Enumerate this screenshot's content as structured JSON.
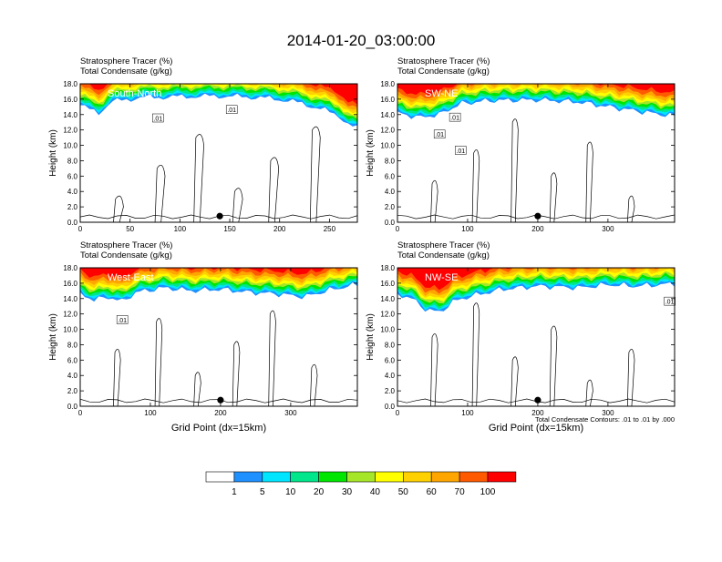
{
  "title": "2014-01-20_03:00:00",
  "colors": [
    "#ffffff",
    "#1e90ff",
    "#00e5ff",
    "#00e68a",
    "#00e600",
    "#a6e628",
    "#ffff00",
    "#ffd100",
    "#ffa500",
    "#ff5a00",
    "#ff0000"
  ],
  "chart_data": [
    {
      "type": "heatmap",
      "panel": "South-North",
      "title_lines": [
        "Stratosphere Tracer   (%)",
        "Total Condensate   (g/kg)"
      ],
      "xlabel": "",
      "ylabel": "Height (km)",
      "xlim": [
        0,
        278
      ],
      "ylim": [
        0,
        18
      ],
      "xticks": [
        0,
        50,
        100,
        150,
        200,
        250
      ],
      "yticks": [
        "0.0",
        "2.0",
        "4.0",
        "6.0",
        "8.0",
        "10.0",
        "12.0",
        "14.0",
        "16.0",
        "18.0"
      ],
      "marker_x": 140,
      "tracer_base_km": [
        [
          0,
          15.2
        ],
        [
          10,
          14.6
        ],
        [
          20,
          14.2
        ],
        [
          30,
          15.6
        ],
        [
          40,
          15.8
        ],
        [
          60,
          16.2
        ],
        [
          100,
          16.3
        ],
        [
          140,
          16.4
        ],
        [
          180,
          16.2
        ],
        [
          210,
          15.8
        ],
        [
          240,
          14.8
        ],
        [
          260,
          13.8
        ],
        [
          270,
          12.6
        ],
        [
          278,
          12.2
        ]
      ],
      "contour_labels": [
        [
          78,
          13.5,
          ".01"
        ],
        [
          152,
          14.6,
          ".01"
        ]
      ]
    },
    {
      "type": "heatmap",
      "panel": "SW-NE",
      "title_lines": [
        "Stratosphere Tracer   (%)",
        "Total Condensate   (g/kg)"
      ],
      "xlabel": "",
      "ylabel": "Height (km)",
      "xlim": [
        0,
        395
      ],
      "ylim": [
        0,
        18
      ],
      "xticks": [
        0,
        100,
        200,
        300
      ],
      "yticks": [
        "0.0",
        "2.0",
        "4.0",
        "6.0",
        "8.0",
        "10.0",
        "12.0",
        "14.0",
        "16.0",
        "18.0"
      ],
      "marker_x": 200,
      "tracer_base_km": [
        [
          0,
          14.2
        ],
        [
          30,
          13.6
        ],
        [
          60,
          14.0
        ],
        [
          90,
          15.4
        ],
        [
          130,
          15.8
        ],
        [
          200,
          15.9
        ],
        [
          260,
          15.6
        ],
        [
          300,
          15.0
        ],
        [
          330,
          14.6
        ],
        [
          360,
          14.2
        ],
        [
          395,
          13.8
        ]
      ],
      "contour_labels": [
        [
          82,
          13.6,
          ".01"
        ],
        [
          60,
          11.4,
          ".01"
        ],
        [
          90,
          9.3,
          ".01"
        ]
      ]
    },
    {
      "type": "heatmap",
      "panel": "West-East",
      "title_lines": [
        "Stratosphere Tracer   (%)",
        "Total Condensate   (g/kg)"
      ],
      "xlabel": "Grid Point (dx=15km)",
      "ylabel": "Height (km)",
      "xlim": [
        0,
        395
      ],
      "ylim": [
        0,
        18
      ],
      "xticks": [
        0,
        100,
        200,
        300
      ],
      "yticks": [
        "0.0",
        "2.0",
        "4.0",
        "6.0",
        "8.0",
        "10.0",
        "12.0",
        "14.0",
        "16.0",
        "18.0"
      ],
      "marker_x": 200,
      "tracer_base_km": [
        [
          0,
          14.6
        ],
        [
          20,
          13.8
        ],
        [
          40,
          14.2
        ],
        [
          60,
          13.6
        ],
        [
          80,
          14.8
        ],
        [
          120,
          15.4
        ],
        [
          160,
          15.0
        ],
        [
          200,
          15.2
        ],
        [
          240,
          14.8
        ],
        [
          280,
          14.6
        ],
        [
          320,
          14.2
        ],
        [
          360,
          15.2
        ],
        [
          395,
          15.8
        ]
      ],
      "contour_labels": [
        [
          60,
          11.2,
          ".01"
        ]
      ]
    },
    {
      "type": "heatmap",
      "panel": "NW-SE",
      "title_lines": [
        "Stratosphere Tracer   (%)",
        "Total Condensate   (g/kg)"
      ],
      "xlabel": "Grid Point (dx=15km)",
      "ylabel": "Height (km)",
      "xlim": [
        0,
        395
      ],
      "ylim": [
        0,
        18
      ],
      "xticks": [
        0,
        100,
        200,
        300
      ],
      "yticks": [
        "0.0",
        "2.0",
        "4.0",
        "6.0",
        "8.0",
        "10.0",
        "12.0",
        "14.0",
        "16.0",
        "18.0"
      ],
      "marker_x": 200,
      "tracer_base_km": [
        [
          0,
          14.6
        ],
        [
          20,
          14.0
        ],
        [
          40,
          12.6
        ],
        [
          60,
          12.2
        ],
        [
          80,
          13.6
        ],
        [
          100,
          14.2
        ],
        [
          150,
          15.2
        ],
        [
          200,
          15.6
        ],
        [
          260,
          15.4
        ],
        [
          300,
          15.8
        ],
        [
          340,
          15.6
        ],
        [
          395,
          15.9
        ]
      ],
      "contour_labels": [
        [
          388,
          13.6,
          ".01"
        ]
      ]
    }
  ],
  "contour_note": "Total Condensate Contours: .01 to .01 by .000",
  "colorbar": {
    "labels": [
      "1",
      "5",
      "10",
      "20",
      "30",
      "40",
      "50",
      "60",
      "70",
      "100"
    ]
  }
}
